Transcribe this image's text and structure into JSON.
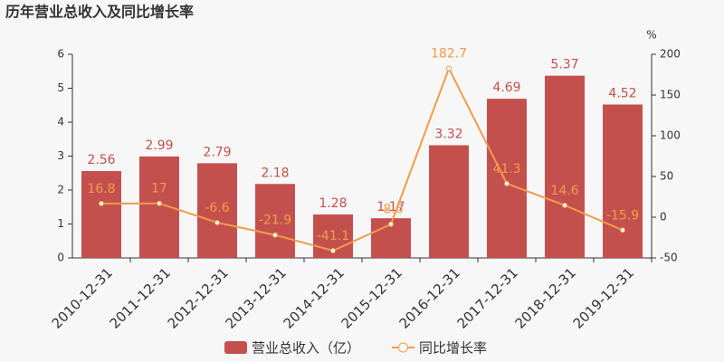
{
  "chart_data": {
    "type": "bar",
    "title": "历年营业总收入及同比增长率",
    "categories": [
      "2010-12-31",
      "2011-12-31",
      "2012-12-31",
      "2013-12-31",
      "2014-12-31",
      "2015-12-31",
      "2016-12-31",
      "2017-12-31",
      "2018-12-31",
      "2019-12-31"
    ],
    "series": [
      {
        "name": "营业总收入（亿）",
        "type": "bar",
        "color": "#c4504e",
        "values": [
          2.56,
          2.99,
          2.79,
          2.18,
          1.28,
          1.17,
          3.32,
          4.69,
          5.37,
          4.52
        ]
      },
      {
        "name": "同比增长率",
        "type": "line",
        "axis": "y2",
        "color": "#f19b4c",
        "values": [
          16.8,
          17,
          -6.6,
          -21.9,
          -41.1,
          -8.6,
          182.7,
          41.3,
          14.6,
          -15.9
        ]
      }
    ],
    "ylim": [
      0,
      6
    ],
    "yticks": [
      0,
      1,
      2,
      3,
      4,
      5,
      6
    ],
    "y2lim": [
      -50,
      200
    ],
    "y2ticks": [
      -50,
      0,
      50,
      100,
      150,
      200
    ],
    "y2label": "%"
  }
}
